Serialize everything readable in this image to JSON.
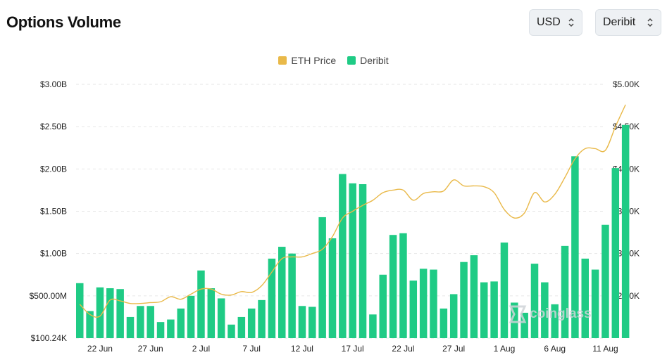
{
  "header": {
    "title": "Options Volume",
    "currency_label": "USD",
    "exchange_label": "Deribit"
  },
  "watermark": "coinglass",
  "colors": {
    "bar": "#1fcb85",
    "line": "#e9b949",
    "grid": "#e6e6e6",
    "axis_text": "#222222"
  },
  "chart_data": {
    "type": "bar",
    "legend": [
      {
        "name": "ETH Price",
        "color": "#e9b949"
      },
      {
        "name": "Deribit",
        "color": "#1fcb85"
      }
    ],
    "legend_position": "top-center",
    "grid": true,
    "left_axis_ticks": [
      "$100.24K",
      "$500.00M",
      "$1.00B",
      "$1.50B",
      "$2.00B",
      "$2.50B",
      "$3.00B"
    ],
    "right_axis_ticks": [
      "$2.50K",
      "$3.00K",
      "$3.50K",
      "$4.00K",
      "$4.50K",
      "$5.00K"
    ],
    "x_tick_labels": [
      "22 Jun",
      "27 Jun",
      "2 Jul",
      "7 Jul",
      "12 Jul",
      "17 Jul",
      "22 Jul",
      "27 Jul",
      "1 Aug",
      "6 Aug",
      "11 Aug"
    ],
    "dates": [
      "20 Jun",
      "21 Jun",
      "22 Jun",
      "23 Jun",
      "24 Jun",
      "25 Jun",
      "26 Jun",
      "27 Jun",
      "28 Jun",
      "29 Jun",
      "30 Jun",
      "1 Jul",
      "2 Jul",
      "3 Jul",
      "4 Jul",
      "5 Jul",
      "6 Jul",
      "7 Jul",
      "8 Jul",
      "9 Jul",
      "10 Jul",
      "11 Jul",
      "12 Jul",
      "13 Jul",
      "14 Jul",
      "15 Jul",
      "16 Jul",
      "17 Jul",
      "18 Jul",
      "19 Jul",
      "20 Jul",
      "21 Jul",
      "22 Jul",
      "23 Jul",
      "24 Jul",
      "25 Jul",
      "26 Jul",
      "27 Jul",
      "28 Jul",
      "29 Jul",
      "30 Jul",
      "31 Jul",
      "1 Aug",
      "2 Aug",
      "3 Aug",
      "4 Aug",
      "5 Aug",
      "6 Aug",
      "7 Aug",
      "8 Aug",
      "9 Aug",
      "10 Aug",
      "11 Aug",
      "12 Aug",
      "13 Aug"
    ],
    "y_left_range": [
      0.0001,
      3.0
    ],
    "y_left_unit": "B",
    "y_right_range": [
      2.0,
      5.0
    ],
    "y_right_unit": "K",
    "series": [
      {
        "name": "Deribit",
        "axis": "left",
        "values": [
          0.65,
          0.32,
          0.6,
          0.59,
          0.58,
          0.25,
          0.38,
          0.38,
          0.19,
          0.22,
          0.35,
          0.5,
          0.8,
          0.59,
          0.47,
          0.16,
          0.25,
          0.35,
          0.45,
          0.94,
          1.08,
          1.0,
          0.38,
          0.37,
          1.43,
          1.18,
          1.94,
          1.83,
          1.82,
          0.28,
          0.75,
          1.22,
          1.24,
          0.68,
          0.82,
          0.81,
          0.35,
          0.52,
          0.9,
          0.98,
          0.66,
          0.67,
          1.13,
          0.42,
          0.3,
          0.88,
          0.66,
          0.4,
          1.09,
          2.15,
          0.94,
          0.81,
          1.34,
          2.01,
          2.52
        ]
      },
      {
        "name": "ETH Price",
        "axis": "right",
        "values": [
          2.4,
          2.28,
          2.26,
          2.45,
          2.44,
          2.41,
          2.41,
          2.42,
          2.43,
          2.49,
          2.46,
          2.52,
          2.58,
          2.58,
          2.52,
          2.51,
          2.55,
          2.54,
          2.62,
          2.78,
          2.94,
          2.96,
          2.96,
          3.0,
          3.05,
          3.2,
          3.42,
          3.5,
          3.57,
          3.63,
          3.72,
          3.75,
          3.75,
          3.63,
          3.71,
          3.73,
          3.74,
          3.87,
          3.8,
          3.8,
          3.79,
          3.72,
          3.52,
          3.42,
          3.48,
          3.72,
          3.61,
          3.7,
          3.9,
          4.12,
          4.24,
          4.24,
          4.22,
          4.5,
          4.76
        ]
      }
    ]
  }
}
